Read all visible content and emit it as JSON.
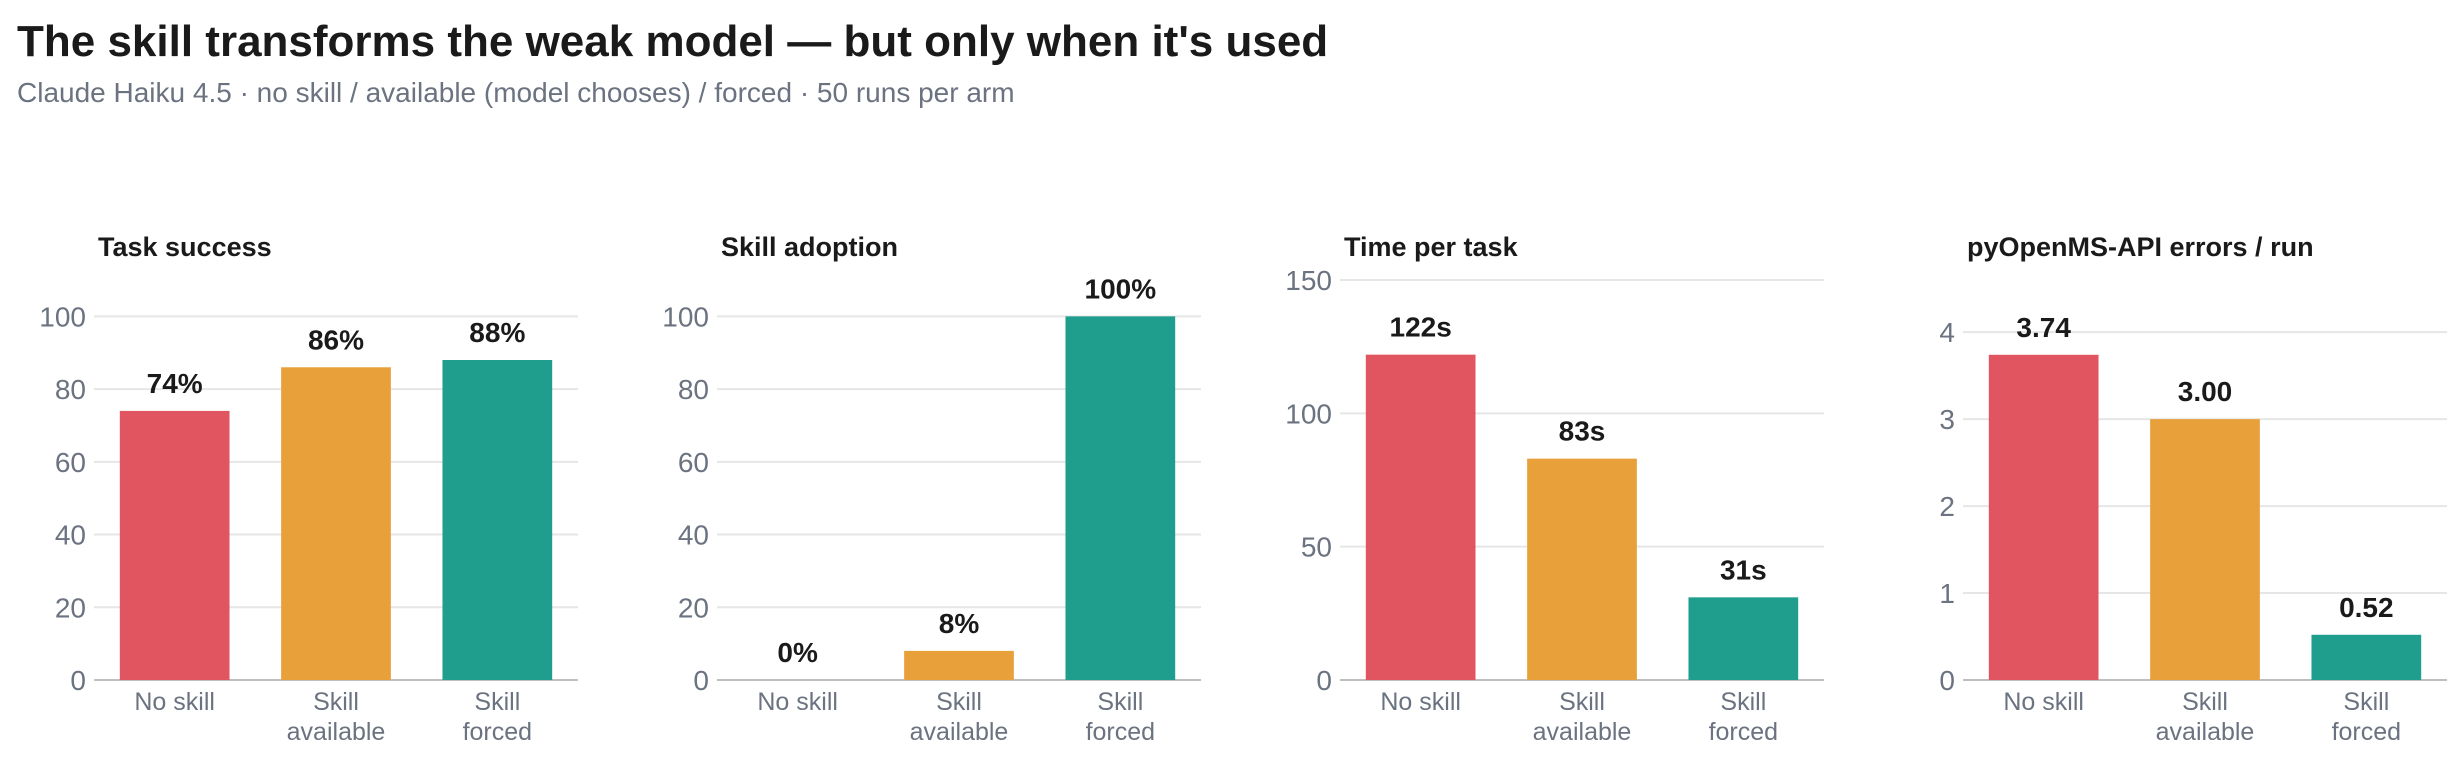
{
  "title": "The skill transforms the weak model — but only when it's used",
  "subtitle": "Claude Haiku 4.5 · no skill / available (model chooses) / forced · 50 runs per arm",
  "chart_data": [
    {
      "type": "bar",
      "title": "Task success",
      "categories": [
        "No skill",
        "Skill available",
        "Skill forced"
      ],
      "values": [
        74,
        86,
        88
      ],
      "value_labels": [
        "74%",
        "86%",
        "88%"
      ],
      "colors": [
        "#e05560",
        "#e8a03a",
        "#1f9e8e"
      ],
      "ylim": [
        0,
        110
      ],
      "yticks": [
        0,
        20,
        40,
        60,
        80,
        100
      ],
      "grid": true
    },
    {
      "type": "bar",
      "title": "Skill adoption",
      "categories": [
        "No skill",
        "Skill available",
        "Skill forced"
      ],
      "values": [
        0,
        8,
        100
      ],
      "value_labels": [
        "0%",
        "8%",
        "100%"
      ],
      "colors": [
        "#e05560",
        "#e8a03a",
        "#1f9e8e"
      ],
      "ylim": [
        0,
        110
      ],
      "yticks": [
        0,
        20,
        40,
        60,
        80,
        100
      ],
      "grid": true
    },
    {
      "type": "bar",
      "title": "Time per task",
      "categories": [
        "No skill",
        "Skill available",
        "Skill forced"
      ],
      "values": [
        122,
        83,
        31
      ],
      "value_labels": [
        "122s",
        "83s",
        "31s"
      ],
      "colors": [
        "#e05560",
        "#e8a03a",
        "#1f9e8e"
      ],
      "ylim": [
        0,
        150
      ],
      "yticks": [
        0,
        50,
        100,
        150
      ],
      "grid": true
    },
    {
      "type": "bar",
      "title": "pyOpenMS-API errors / run",
      "categories": [
        "No skill",
        "Skill available",
        "Skill forced"
      ],
      "values": [
        3.74,
        3.0,
        0.52
      ],
      "value_labels": [
        "3.74",
        "3.00",
        "0.52"
      ],
      "colors": [
        "#e05560",
        "#e8a03a",
        "#1f9e8e"
      ],
      "ylim": [
        0,
        4.6
      ],
      "yticks": [
        0,
        1,
        2,
        3,
        4
      ],
      "grid": true
    }
  ]
}
